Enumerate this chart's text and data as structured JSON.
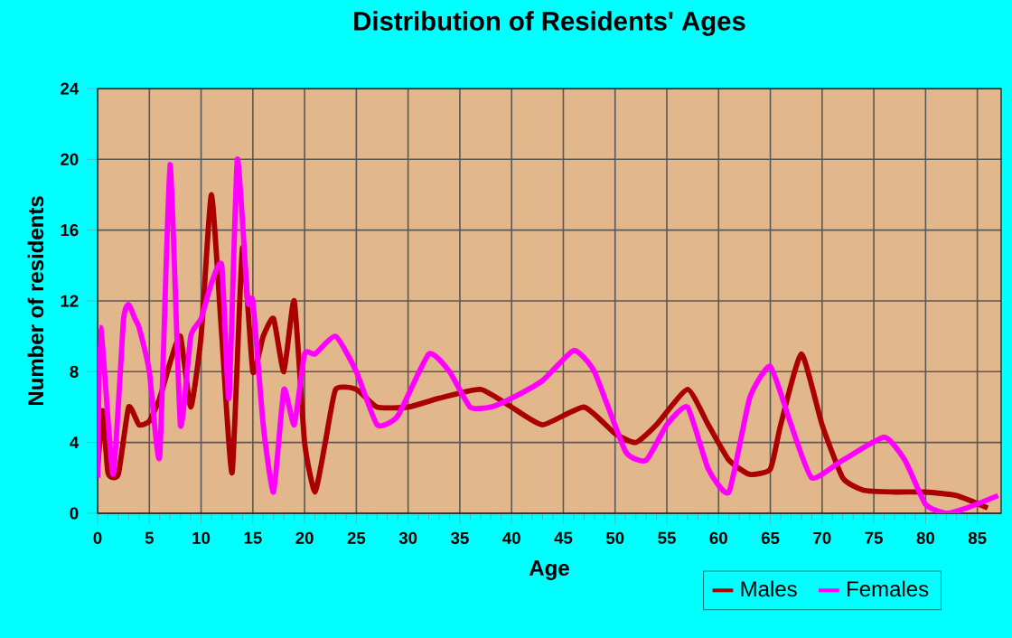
{
  "chart_data": {
    "type": "line",
    "title": "Distribution of Residents' Ages",
    "xlabel": "Age",
    "ylabel": "Number of residents",
    "xlim": [
      0,
      87.3
    ],
    "xticks": [
      0,
      5,
      10,
      15,
      20,
      25,
      30,
      35,
      40,
      45,
      50,
      55,
      60,
      65,
      70,
      75,
      80,
      85
    ],
    "ylim": [
      0,
      24
    ],
    "yticks": [
      0,
      4,
      8,
      12,
      16,
      20,
      24
    ],
    "grid": true,
    "legend": "bottom right",
    "marker": "none",
    "line_style": "solid",
    "series": [
      {
        "name": "Males",
        "color": "#aa0000",
        "x": [
          0,
          0.5,
          1,
          2,
          3,
          4,
          5,
          6,
          7,
          8,
          9,
          10,
          11,
          12,
          13,
          14,
          15,
          16,
          17,
          18,
          19,
          20,
          21,
          22,
          23,
          25,
          27,
          30,
          33,
          37,
          40,
          43,
          47,
          50,
          52,
          54,
          57,
          59,
          61,
          63,
          65,
          66,
          68,
          70,
          72,
          74,
          77,
          80,
          83,
          86
        ],
        "values": [
          2.5,
          5.8,
          2.3,
          2.2,
          6,
          5,
          5.2,
          6.5,
          8.5,
          10,
          6,
          10,
          18,
          10,
          2.3,
          15,
          8,
          10,
          11,
          8,
          12,
          4,
          1.2,
          4,
          7,
          7,
          6,
          6,
          6.5,
          7,
          6,
          5,
          6,
          4.5,
          4,
          5,
          7,
          5,
          3,
          2.2,
          2.5,
          5,
          9,
          5,
          2,
          1.3,
          1.2,
          1.2,
          1,
          0.3
        ]
      },
      {
        "name": "Females",
        "color": "#ff00ff",
        "x": [
          0,
          0.3,
          1.5,
          2.5,
          3,
          3.6,
          4,
          5,
          6,
          7,
          8,
          9,
          10,
          11,
          12,
          12.7,
          13.5,
          14.5,
          15,
          16,
          17,
          18,
          19,
          20,
          21,
          23,
          25,
          27,
          29,
          32,
          34,
          36,
          38,
          40,
          43,
          46,
          48,
          51,
          53,
          55,
          57,
          59,
          61,
          63,
          65,
          67,
          69,
          72,
          76,
          78,
          80,
          82,
          84,
          87
        ],
        "values": [
          2,
          10.5,
          2.2,
          10.9,
          11.8,
          11,
          10.5,
          8,
          3.2,
          19.7,
          5,
          10,
          11,
          13,
          14,
          6.5,
          20,
          12,
          12,
          5,
          1.2,
          7,
          5,
          9,
          9,
          10,
          8,
          5,
          5.5,
          9,
          8,
          6,
          6,
          6.5,
          7.5,
          9.2,
          8,
          3.5,
          3,
          5,
          6,
          2.5,
          1.2,
          6.5,
          8.3,
          5,
          2,
          3,
          4.3,
          3,
          0.5,
          0,
          0.3,
          1
        ]
      }
    ]
  }
}
